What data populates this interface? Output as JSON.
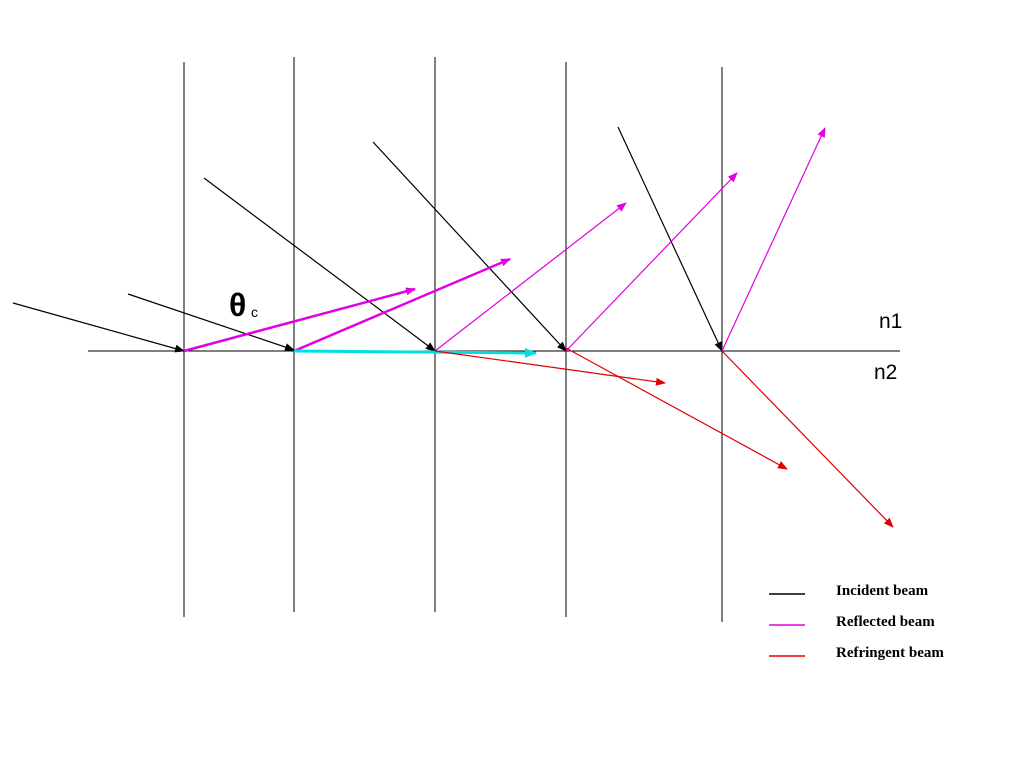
{
  "labels": {
    "theta": "θ",
    "theta_sub": "c",
    "n1": "n1",
    "n2": "n2"
  },
  "legend": [
    {
      "label": "Incident beam"
    },
    {
      "label": "Reflected beam"
    },
    {
      "label": "Refringent beam"
    }
  ]
}
